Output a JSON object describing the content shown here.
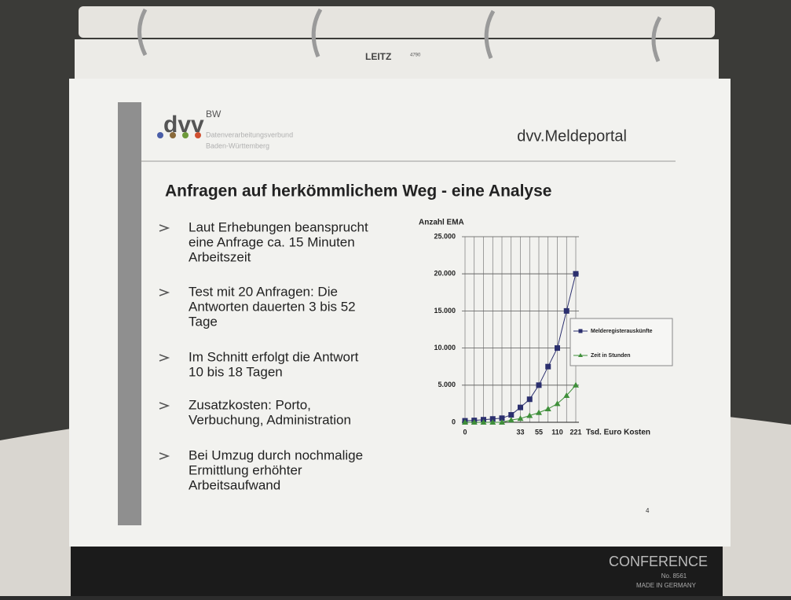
{
  "binder": {
    "brand": "LEITZ",
    "code": "4790",
    "cover_brand": "CONFERENCE",
    "cover_number": "No. 8561",
    "cover_origin": "MADE IN GERMANY"
  },
  "slide": {
    "logo": "dvv",
    "logo_sup": "BW",
    "logo_line1": "Datenverarbeitungsverbund",
    "logo_line2": "Baden-Württemberg",
    "header": "dvv.Meldeportal",
    "title": "Anfragen auf herkömmlichem Weg - eine Analyse",
    "bullets": [
      [
        "Laut Erhebungen beansprucht",
        "eine Anfrage ca. 15 Minuten",
        "Arbeitszeit"
      ],
      [
        "Test mit 20 Anfragen: Die",
        "Antworten dauerten 3 bis 52",
        "Tage"
      ],
      [
        "Im Schnitt erfolgt die Antwort",
        "10 bis 18 Tagen"
      ],
      [
        "Zusatzkosten: Porto,",
        "Verbuchung, Administration"
      ],
      [
        "Bei Umzug durch nochmalige",
        "Ermittlung erhöhter",
        "Arbeitsaufwand"
      ]
    ],
    "page_number": "4"
  },
  "chart_data": {
    "type": "line",
    "y_label": "Anzahl EMA",
    "x_label": "Tsd. Euro Kosten",
    "categories": [
      "0",
      null,
      null,
      null,
      null,
      null,
      "33",
      null,
      "55",
      null,
      "110",
      null,
      "221"
    ],
    "series": [
      {
        "name": "Melderegisterauskünfte",
        "color": "#2b2f6e",
        "marker": "square",
        "values": [
          200,
          250,
          350,
          450,
          550,
          1000,
          2000,
          3100,
          5000,
          7500,
          10000,
          15000,
          20000
        ]
      },
      {
        "name": "Zeit in Stunden",
        "color": "#3f8f3a",
        "marker": "triangle",
        "values": [
          0,
          0,
          0,
          0,
          0,
          300,
          500,
          900,
          1300,
          1800,
          2500,
          3600,
          5000
        ]
      }
    ],
    "ylim": [
      0,
      25000
    ],
    "yticks": [
      0,
      {
        "value": 5000,
        "label": "5.000"
      },
      {
        "value": 10000,
        "label": "10.000"
      },
      {
        "value": 15000,
        "label": "15.000"
      },
      {
        "value": 20000,
        "label": "20.000"
      },
      {
        "value": 25000,
        "label": "25.000"
      }
    ],
    "grid": true
  }
}
